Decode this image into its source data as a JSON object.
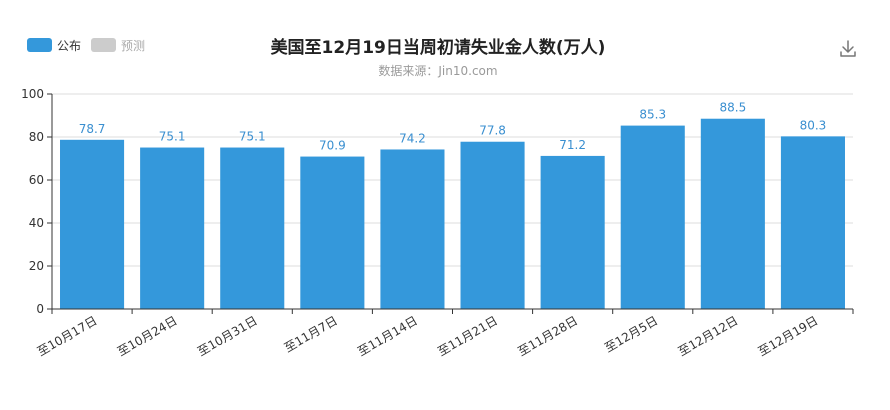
{
  "chart_data": {
    "type": "bar",
    "title": "美国至12月19日当周初请失业金人数(万人)",
    "subtitle": "数据来源：Jin10.com",
    "legend": [
      {
        "label": "公布",
        "color": "#3498db",
        "active": true
      },
      {
        "label": "预测",
        "color": "#cccccc",
        "active": false
      }
    ],
    "legend_position": "top-left",
    "categories": [
      "至10月17日",
      "至10月24日",
      "至10月31日",
      "至11月7日",
      "至11月14日",
      "至11月21日",
      "至11月28日",
      "至12月5日",
      "至12月12日",
      "至12月19日"
    ],
    "series": [
      {
        "name": "公布",
        "values": [
          78.7,
          75.1,
          75.1,
          70.9,
          74.2,
          77.8,
          71.2,
          85.3,
          88.5,
          80.3
        ],
        "color": "#3498db"
      }
    ],
    "ylim": [
      0,
      100
    ],
    "yticks": [
      0,
      20,
      40,
      60,
      80,
      100
    ],
    "grid": true,
    "xlabel": "",
    "ylabel": ""
  },
  "toolbar": {
    "download_icon": "download-icon"
  }
}
